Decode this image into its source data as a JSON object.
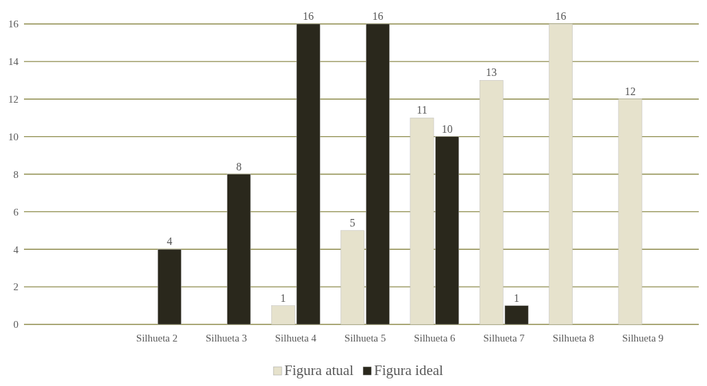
{
  "chart_data": {
    "type": "bar",
    "categories": [
      null,
      "Silhueta 2",
      "Silhueta 3",
      "Silhueta 4",
      "Silhueta 5",
      "Silhueta 6",
      "Silhueta 7",
      "Silhueta 8",
      "Silhueta 9"
    ],
    "series": [
      {
        "name": "Figura atual",
        "color": "#e6e2cc",
        "values": [
          null,
          null,
          null,
          1,
          5,
          11,
          13,
          16,
          12
        ]
      },
      {
        "name": "Figura ideal",
        "color": "#2a281c",
        "values": [
          null,
          4,
          8,
          16,
          16,
          10,
          1,
          null,
          null
        ]
      }
    ],
    "ylim": [
      0,
      16
    ],
    "yticks": [
      0,
      2,
      4,
      6,
      8,
      10,
      12,
      14,
      16
    ],
    "grid": "y",
    "legend": "bottom",
    "data_labels": true
  }
}
